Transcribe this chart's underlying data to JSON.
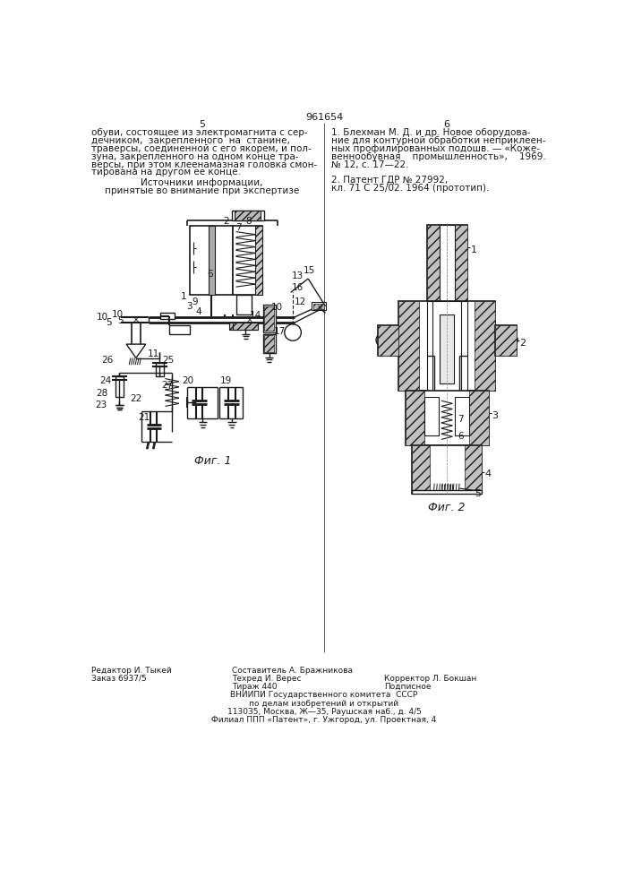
{
  "page_number_center": "961654",
  "page_col_left": "5",
  "page_col_right": "6",
  "text_left_col": [
    "обуви, состоящее из электромагнита с сер-",
    "дечником,  закрепленного  на  станине,",
    "траверсы, соединенной с его якорем, и пол-",
    "зуна, закрепленного на одном конце тра-",
    "версы, при этом клеенамазная головка смон-",
    "тирована на другом ее конце."
  ],
  "text_sources_header": "Источники информации,",
  "text_sources_sub": "принятые во внимание при экспертизе",
  "text_right_col": [
    "1. Блехман М. Д. и др. Новое оборудова-",
    "ние для контурной обработки неприклеен-",
    "ных профилированных подошв. — «Коже-",
    "веннообувная    промышленность»,    1969.",
    "№ 12, с. 17—22.",
    "",
    "2. Патент ГДР № 27992,",
    "кл. 71 С 25/02. 1964 (прототип)."
  ],
  "fig1_label": "Фиг. 1",
  "fig2_label": "Фиг. 2",
  "footer_left1": "Редактор И. Тыкей",
  "footer_left2": "Заказ 6937/5",
  "footer_center1": "Составитель А. Бражникова",
  "footer_center2": "Техред И. Верес",
  "footer_center3": "Тираж 440",
  "footer_right1": "Корректор Л. Бокшан",
  "footer_right2": "Подписное",
  "footer_vniip1": "ВНИИПИ Государственного комитета  СССР",
  "footer_vniip2": "по делам изобретений и открытий",
  "footer_vniip3": "113035, Москва, Ж—35, Раушская наб., д. 4/5",
  "footer_vniip4": "Филиал ППП «Патент», г. Ужгород, ул. Проектная, 4",
  "bg_color": "#ffffff",
  "text_color": "#1a1a1a"
}
